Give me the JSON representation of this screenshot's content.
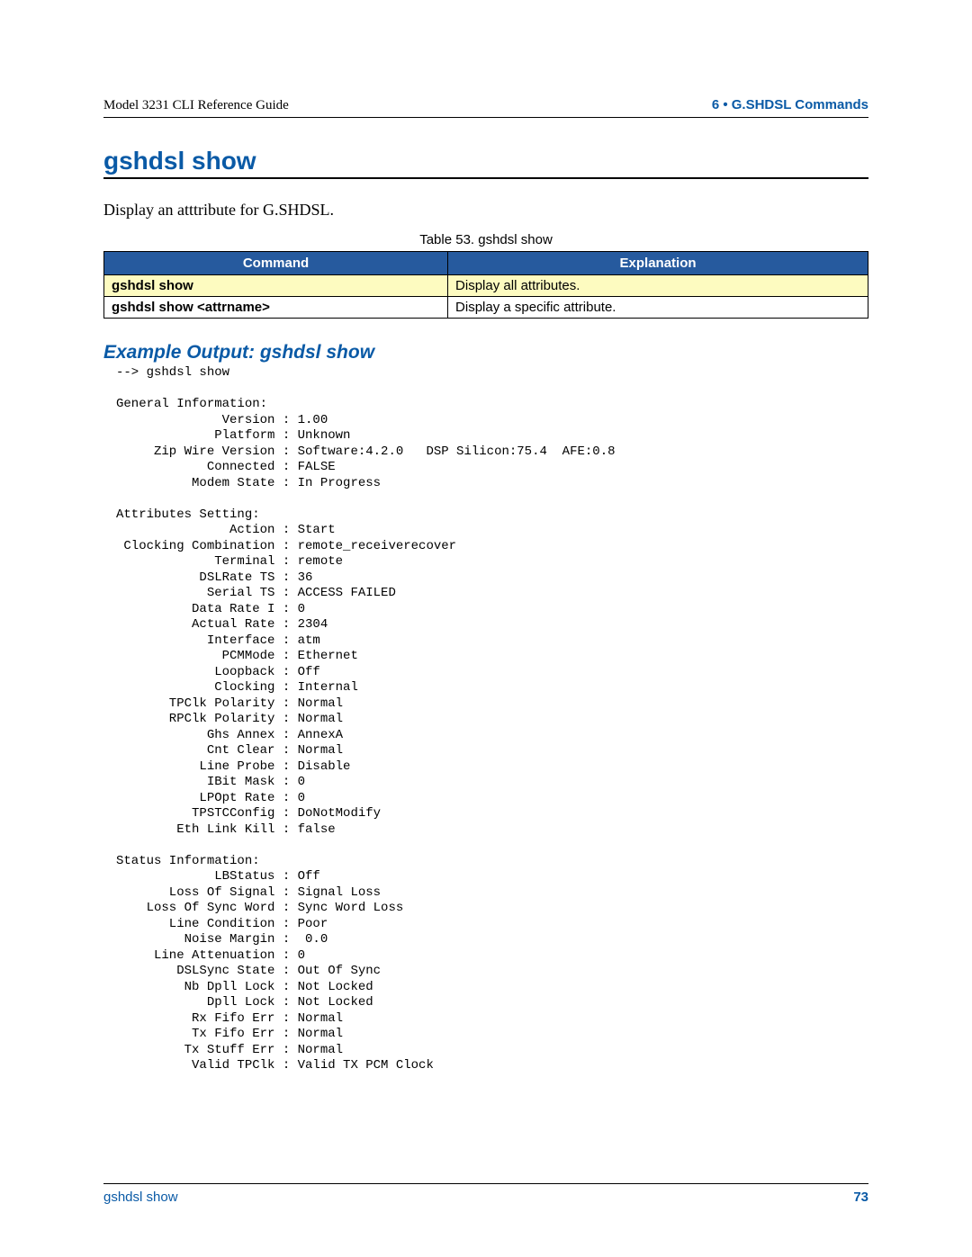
{
  "header": {
    "doc_title": "Model 3231 CLI Reference Guide",
    "chapter": "6 • G.SHDSL Commands"
  },
  "section": {
    "title": "gshdsl show",
    "intro": "Display an atttribute for G.SHDSL."
  },
  "table": {
    "caption": "Table 53. gshdsl show",
    "columns": [
      "Command",
      "Explanation"
    ],
    "rows": [
      {
        "cmd": "gshdsl show",
        "exp": "Display all attributes.",
        "highlight": true
      },
      {
        "cmd": "gshdsl show <attrname>",
        "exp": "Display a specific attribute.",
        "highlight": false
      }
    ]
  },
  "example": {
    "title": "Example Output: gshdsl show",
    "text": "--> gshdsl show\n\nGeneral Information:\n              Version : 1.00\n             Platform : Unknown\n     Zip Wire Version : Software:4.2.0   DSP Silicon:75.4  AFE:0.8\n            Connected : FALSE\n          Modem State : In Progress\n\nAttributes Setting:\n               Action : Start\n Clocking Combination : remote_receiverecover\n             Terminal : remote\n           DSLRate TS : 36\n            Serial TS : ACCESS FAILED\n          Data Rate I : 0\n          Actual Rate : 2304\n            Interface : atm\n              PCMMode : Ethernet\n             Loopback : Off\n             Clocking : Internal\n       TPClk Polarity : Normal\n       RPClk Polarity : Normal\n            Ghs Annex : AnnexA\n            Cnt Clear : Normal\n           Line Probe : Disable\n            IBit Mask : 0\n           LPOpt Rate : 0\n          TPSTCConfig : DoNotModify\n        Eth Link Kill : false\n\nStatus Information:\n             LBStatus : Off\n       Loss Of Signal : Signal Loss\n    Loss Of Sync Word : Sync Word Loss\n       Line Condition : Poor\n         Noise Margin :  0.0\n     Line Attenuation : 0\n        DSLSync State : Out Of Sync\n         Nb Dpll Lock : Not Locked\n            Dpll Lock : Not Locked\n          Rx Fifo Err : Normal\n          Tx Fifo Err : Normal\n         Tx Stuff Err : Normal\n          Valid TPClk : Valid TX PCM Clock"
  },
  "footer": {
    "left": "gshdsl show",
    "page": "73"
  },
  "colors": {
    "accent": "#0a5aa6",
    "table_header_bg": "#265a9e",
    "table_header_fg": "#ffffff",
    "highlight_bg": "#fdfbc0",
    "rule": "#000000",
    "text": "#000000"
  }
}
